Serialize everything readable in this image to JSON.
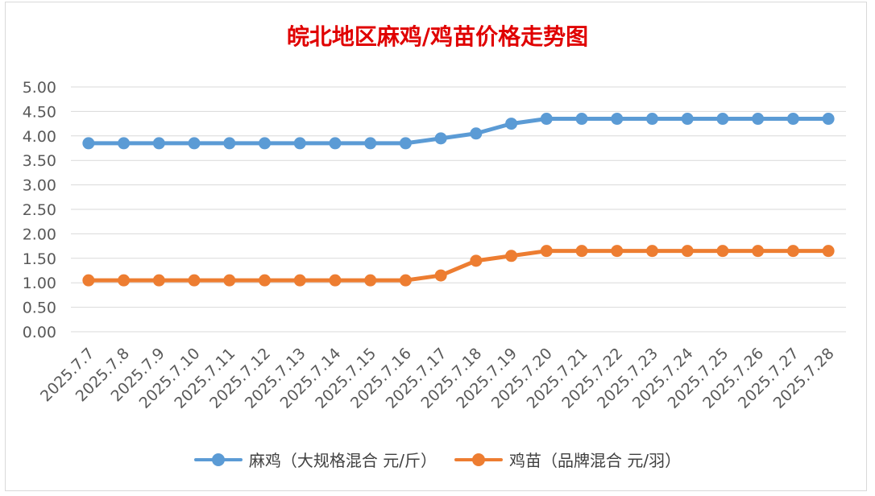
{
  "chart_data": {
    "type": "line",
    "title": "皖北地区麻鸡/鸡苗价格走势图",
    "categories": [
      "2025.7.7",
      "2025.7.8",
      "2025.7.9",
      "2025.7.10",
      "2025.7.11",
      "2025.7.12",
      "2025.7.13",
      "2025.7.14",
      "2025.7.15",
      "2025.7.16",
      "2025.7.17",
      "2025.7.18",
      "2025.7.19",
      "2025.7.20",
      "2025.7.21",
      "2025.7.22",
      "2025.7.23",
      "2025.7.24",
      "2025.7.25",
      "2025.7.26",
      "2025.7.27",
      "2025.7.28"
    ],
    "series": [
      {
        "name": "麻鸡（大规格混合 元/斤）",
        "color": "#5b9bd5",
        "values": [
          3.85,
          3.85,
          3.85,
          3.85,
          3.85,
          3.85,
          3.85,
          3.85,
          3.85,
          3.85,
          3.95,
          4.05,
          4.25,
          4.35,
          4.35,
          4.35,
          4.35,
          4.35,
          4.35,
          4.35,
          4.35,
          4.35
        ]
      },
      {
        "name": "鸡苗（品牌混合 元/羽）",
        "color": "#ed7d31",
        "values": [
          1.05,
          1.05,
          1.05,
          1.05,
          1.05,
          1.05,
          1.05,
          1.05,
          1.05,
          1.05,
          1.15,
          1.45,
          1.55,
          1.65,
          1.65,
          1.65,
          1.65,
          1.65,
          1.65,
          1.65,
          1.65,
          1.65
        ]
      }
    ],
    "ylim": [
      0,
      5
    ],
    "yticks": [
      "0.00",
      "0.50",
      "1.00",
      "1.50",
      "2.00",
      "2.50",
      "3.00",
      "3.50",
      "4.00",
      "4.50",
      "5.00"
    ],
    "grid": true,
    "legend_position": "bottom"
  }
}
